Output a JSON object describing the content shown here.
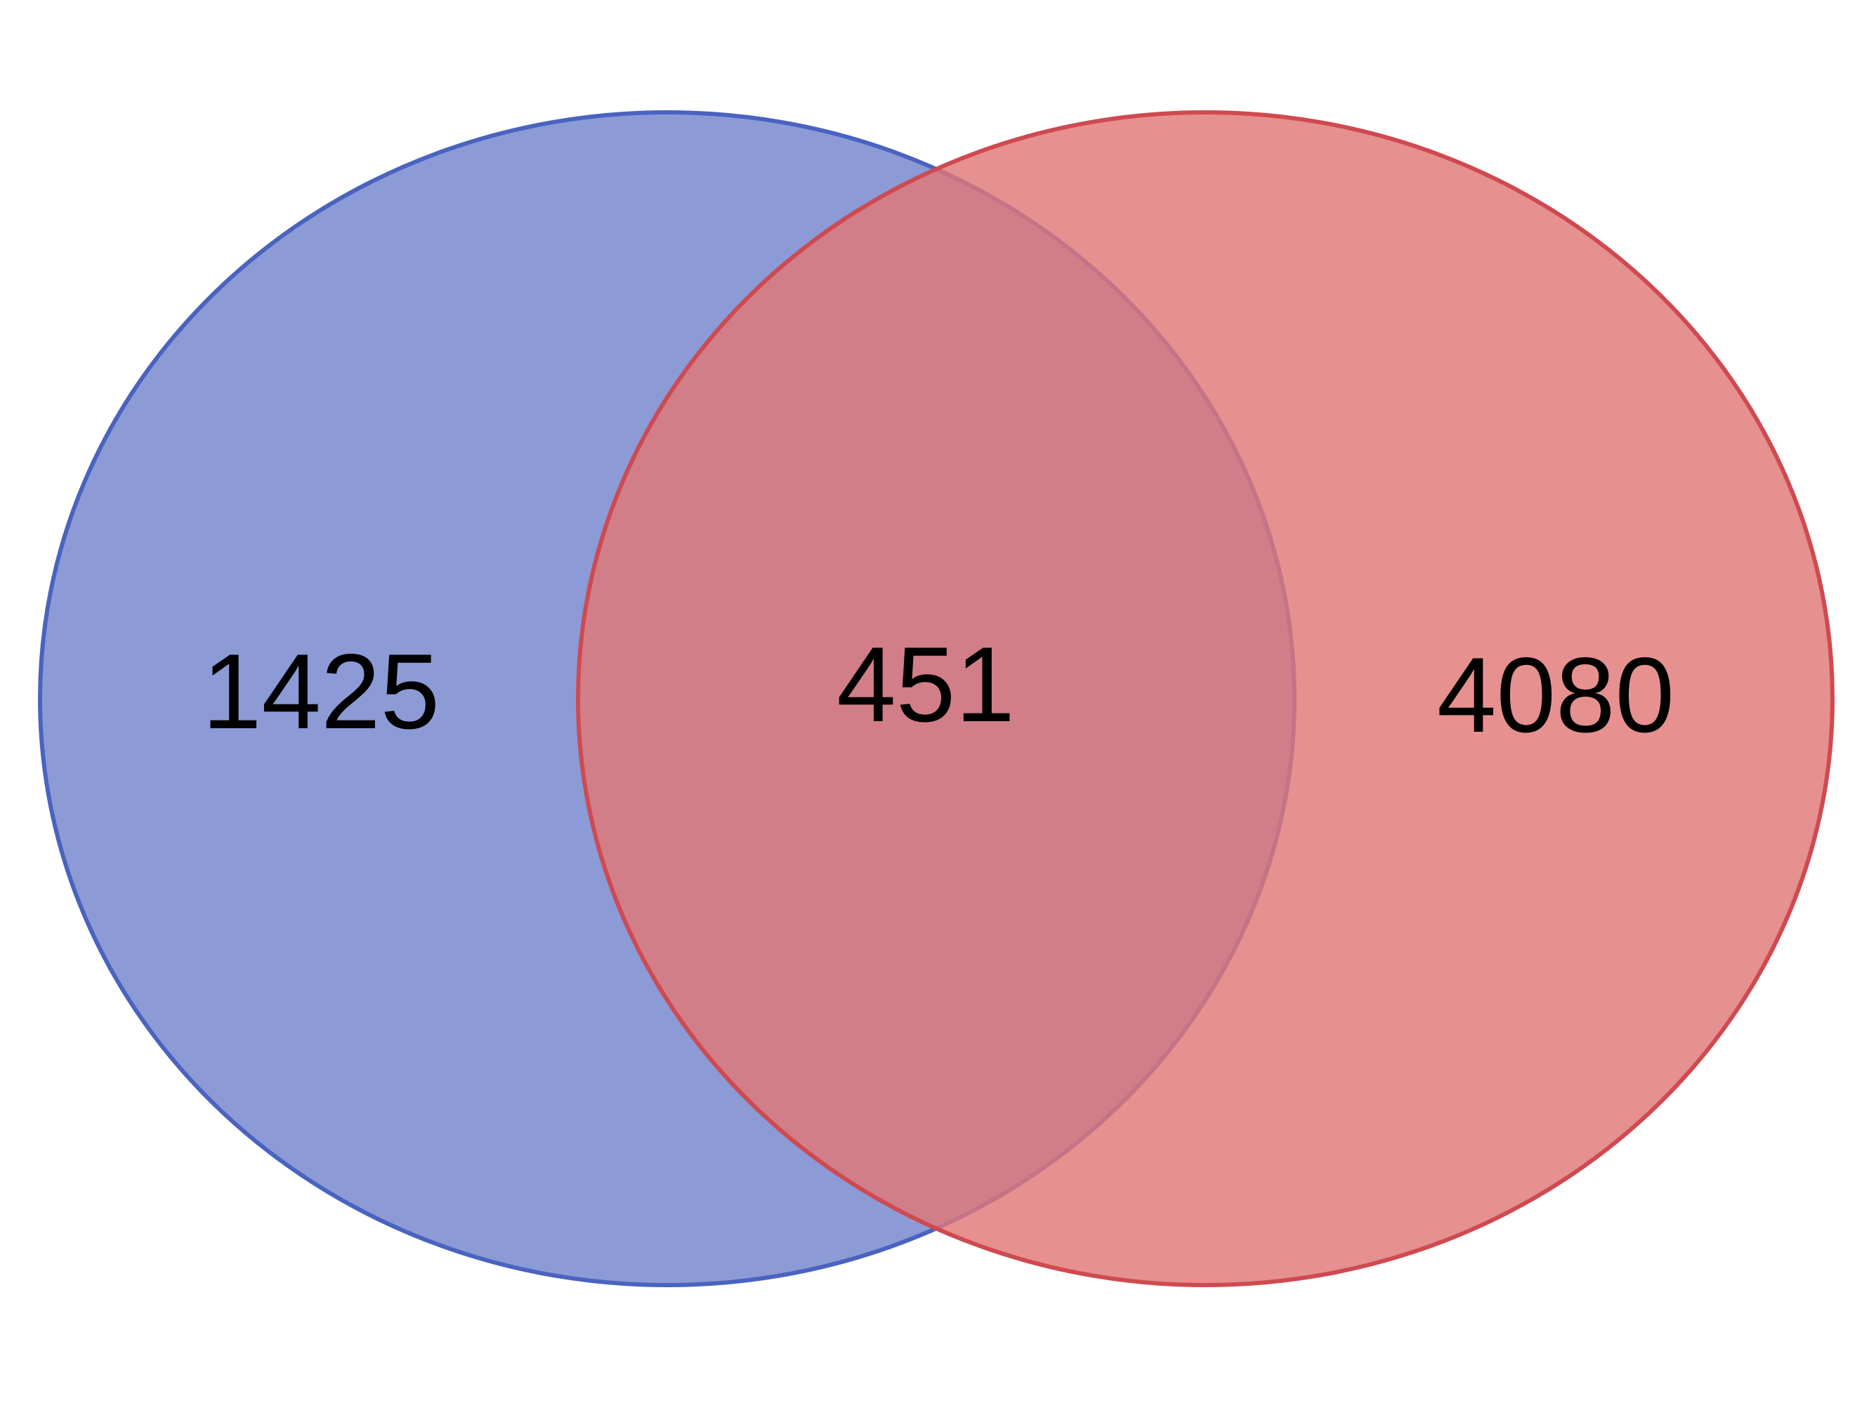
{
  "diagram": {
    "type": "venn",
    "sets": [
      {
        "key": "left",
        "color_fill": "#7385cc",
        "color_stroke": "#4a63c0"
      },
      {
        "key": "right",
        "color_fill": "#e07878",
        "color_stroke": "#cf4a50"
      }
    ],
    "regions": {
      "left_only": "1425",
      "intersection": "451",
      "right_only": "4080"
    }
  }
}
